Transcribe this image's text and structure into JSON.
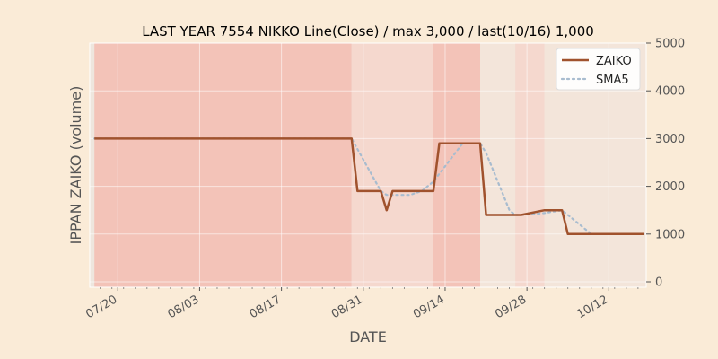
{
  "chart_data": {
    "type": "line",
    "title": "LAST YEAR 7554 NIKKO Line(Close) / max 3,000 / last(10/16) 1,000",
    "xlabel": "DATE",
    "ylabel": "IPPAN ZAIKO (volume)",
    "ylim": [
      0,
      5000
    ],
    "y_ticks": [
      "0",
      "1000",
      "2000",
      "3000",
      "4000",
      "5000"
    ],
    "y_axis_side": "right",
    "x_ticks": [
      "07/20",
      "08/03",
      "08/17",
      "08/31",
      "09/14",
      "09/28",
      "10/12"
    ],
    "x_tick_days": [
      4,
      18,
      32,
      46,
      60,
      74,
      88
    ],
    "xlim_days": [
      -0.8,
      94.4
    ],
    "legend_placement": "top-right",
    "grid": true,
    "series": [
      {
        "name": "ZAIKO",
        "color": "#A0522D",
        "style": "solid",
        "days": [
          0,
          44,
          45,
          49,
          50,
          51,
          58,
          59,
          66,
          67,
          72,
          73,
          77,
          78,
          79,
          80,
          81,
          94
        ],
        "values": [
          3000,
          3000,
          1900,
          1900,
          1500,
          1900,
          1900,
          2900,
          2900,
          1400,
          1400,
          1400,
          1500,
          1500,
          1500,
          1500,
          1000,
          1000
        ]
      },
      {
        "name": "SMA5",
        "color": "#A8BCCF",
        "style": "dotted",
        "days": [
          0,
          44,
          45,
          49,
          50,
          51,
          53,
          54,
          56,
          58,
          63,
          66,
          67,
          68,
          69,
          70,
          71,
          72,
          73,
          75,
          77,
          78,
          79,
          80,
          81,
          82,
          83,
          84,
          85,
          94
        ],
        "values": [
          3000,
          3000,
          2780,
          1900,
          1820,
          1820,
          1820,
          1820,
          1900,
          2100,
          2900,
          2900,
          2700,
          2400,
          2100,
          1800,
          1500,
          1400,
          1400,
          1420,
          1440,
          1460,
          1480,
          1500,
          1400,
          1300,
          1200,
          1100,
          1000,
          1000
        ]
      }
    ],
    "bands": [
      {
        "from_day": 0,
        "to_day": 44,
        "color": "#F3C3B8"
      },
      {
        "from_day": 44,
        "to_day": 58,
        "color": "#F5D8CE"
      },
      {
        "from_day": 58,
        "to_day": 66,
        "color": "#F3C3B8"
      },
      {
        "from_day": 66,
        "to_day": 72,
        "color": "#F3E5DA"
      },
      {
        "from_day": 72,
        "to_day": 77,
        "color": "#F5D8CE"
      },
      {
        "from_day": 77,
        "to_day": 94.4,
        "color": "#F3E5DA"
      }
    ]
  }
}
